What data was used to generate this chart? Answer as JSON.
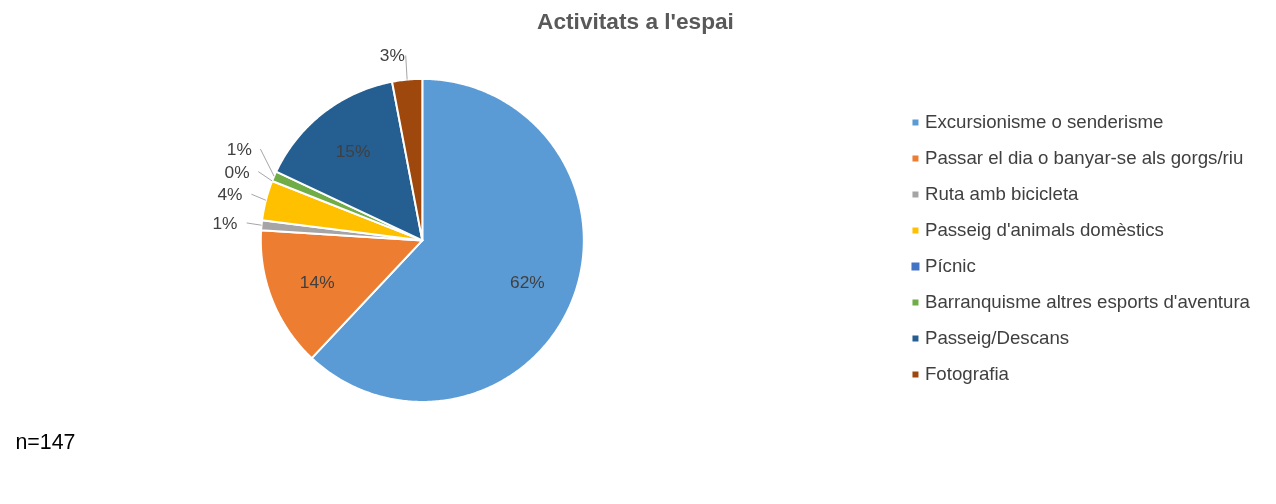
{
  "chart_data": {
    "type": "pie",
    "title": "Activitats a l'espai",
    "categories": [
      "Excursionisme o senderisme",
      "Passar el dia o banyar-se als gorgs/riu",
      "Ruta amb bicicleta",
      "Passeig d'animals domèstics",
      "Pícnic",
      "Barranquisme altres esports d'aventura",
      "Passeig/Descans",
      "Fotografia"
    ],
    "values": [
      62,
      14,
      1,
      4,
      0,
      1,
      15,
      3
    ],
    "colors": [
      "#5b9bd5",
      "#ed7d31",
      "#a5a5a5",
      "#ffc000",
      "#4472c4",
      "#70ad47",
      "#255e91",
      "#9e480e"
    ],
    "value_labels": [
      "62%",
      "14%",
      "1%",
      "4%",
      "0%",
      "1%",
      "15%",
      "3%"
    ],
    "legend": "right",
    "annotations": [
      "n=147"
    ]
  }
}
